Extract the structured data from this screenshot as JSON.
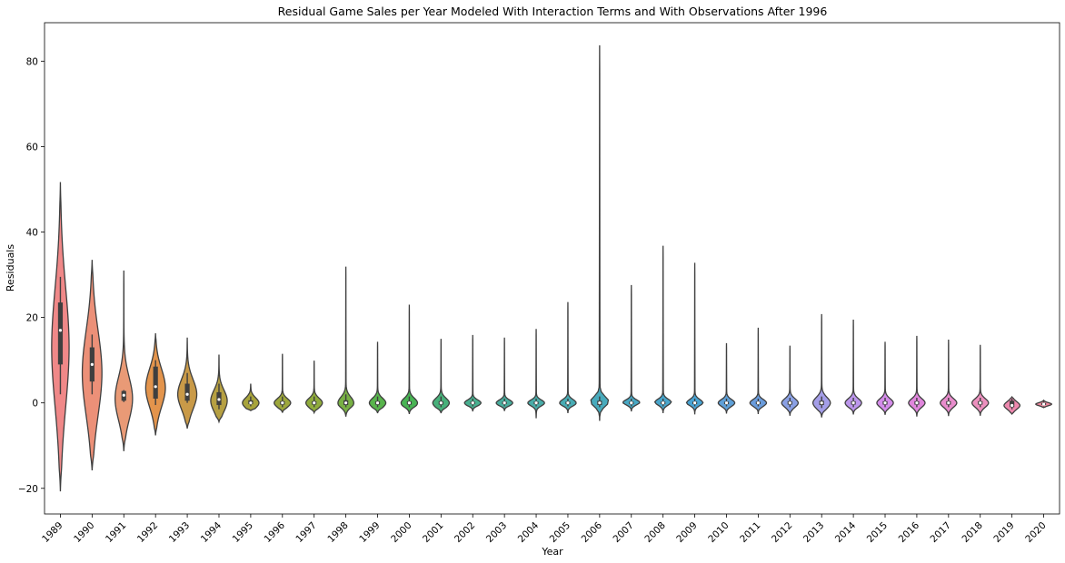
{
  "chart_data": {
    "type": "violin",
    "title": "Residual Game Sales per Year Modeled With Interaction Terms and With Observations After 1996",
    "xlabel": "Year",
    "ylabel": "Residuals",
    "ylim": [
      -26,
      89
    ],
    "yticks": [
      -20,
      0,
      20,
      40,
      60,
      80
    ],
    "ytick_labels": [
      "−20",
      "0",
      "20",
      "40",
      "60",
      "80"
    ],
    "grid": false,
    "legend": "none",
    "series": [
      {
        "category": "1989",
        "color": "#f08888",
        "min": -20.7,
        "max": 51.7,
        "q1": 9.0,
        "q3": 23.5,
        "median": 17.0,
        "wlow": 2.0,
        "whigh": 29.5,
        "center": 13.0,
        "spread": 14.0,
        "width": 0.55
      },
      {
        "category": "1990",
        "color": "#ec9078",
        "min": -15.8,
        "max": 33.5,
        "q1": 5.0,
        "q3": 13.0,
        "median": 9.0,
        "wlow": 2.0,
        "whigh": 16.0,
        "center": 7.0,
        "spread": 10.0,
        "width": 0.62
      },
      {
        "category": "1991",
        "color": "#e99a76",
        "min": -11.3,
        "max": 31.0,
        "q1": 0.5,
        "q3": 2.8,
        "median": 1.8,
        "wlow": 0.2,
        "whigh": 3.0,
        "center": 1.0,
        "spread": 5.0,
        "width": 0.55
      },
      {
        "category": "1992",
        "color": "#e3944c",
        "min": -7.6,
        "max": 16.3,
        "q1": 1.0,
        "q3": 8.5,
        "median": 3.8,
        "wlow": -0.5,
        "whigh": 10.0,
        "center": 3.5,
        "spread": 4.5,
        "width": 0.62
      },
      {
        "category": "1993",
        "color": "#c99a48",
        "min": -6.0,
        "max": 15.3,
        "q1": 0.5,
        "q3": 4.5,
        "median": 2.0,
        "wlow": 0.0,
        "whigh": 7.0,
        "center": 2.0,
        "spread": 3.5,
        "width": 0.6
      },
      {
        "category": "1994",
        "color": "#b6a042",
        "min": -4.4,
        "max": 11.3,
        "q1": -0.5,
        "q3": 2.5,
        "median": 0.8,
        "wlow": -1.5,
        "whigh": 4.5,
        "center": 0.5,
        "spread": 2.5,
        "width": 0.52
      },
      {
        "category": "1995",
        "color": "#a8a43c",
        "min": -1.8,
        "max": 4.5,
        "q1": -0.3,
        "q3": 0.6,
        "median": 0.0,
        "wlow": -0.8,
        "whigh": 1.5,
        "center": 0.0,
        "spread": 1.2,
        "width": 0.52
      },
      {
        "category": "1996",
        "color": "#9ea83c",
        "min": -2.3,
        "max": 11.5,
        "q1": -0.4,
        "q3": 0.4,
        "median": 0.0,
        "wlow": -1.0,
        "whigh": 1.5,
        "center": 0.0,
        "spread": 1.0,
        "width": 0.52
      },
      {
        "category": "1997",
        "color": "#90ac3c",
        "min": -2.3,
        "max": 9.9,
        "q1": -0.4,
        "q3": 0.4,
        "median": 0.0,
        "wlow": -1.0,
        "whigh": 1.5,
        "center": 0.0,
        "spread": 1.1,
        "width": 0.52
      },
      {
        "category": "1998",
        "color": "#78b044",
        "min": -3.2,
        "max": 31.9,
        "q1": -0.5,
        "q3": 0.6,
        "median": 0.0,
        "wlow": -1.0,
        "whigh": 2.0,
        "center": 0.0,
        "spread": 1.4,
        "width": 0.5
      },
      {
        "category": "1999",
        "color": "#58b44c",
        "min": -2.4,
        "max": 14.3,
        "q1": -0.4,
        "q3": 0.4,
        "median": 0.0,
        "wlow": -1.0,
        "whigh": 1.5,
        "center": 0.0,
        "spread": 1.1,
        "width": 0.52
      },
      {
        "category": "2000",
        "color": "#48b454",
        "min": -2.6,
        "max": 23.0,
        "q1": -0.4,
        "q3": 0.4,
        "median": 0.0,
        "wlow": -1.0,
        "whigh": 1.5,
        "center": 0.0,
        "spread": 1.1,
        "width": 0.52
      },
      {
        "category": "2001",
        "color": "#48b07a",
        "min": -2.4,
        "max": 15.0,
        "q1": -0.4,
        "q3": 0.4,
        "median": 0.0,
        "wlow": -1.0,
        "whigh": 1.5,
        "center": 0.0,
        "spread": 1.1,
        "width": 0.52
      },
      {
        "category": "2002",
        "color": "#48b090",
        "min": -2.0,
        "max": 15.9,
        "q1": -0.3,
        "q3": 0.3,
        "median": 0.0,
        "wlow": -0.8,
        "whigh": 1.0,
        "center": 0.0,
        "spread": 0.7,
        "width": 0.52
      },
      {
        "category": "2003",
        "color": "#48ae9e",
        "min": -1.9,
        "max": 15.3,
        "q1": -0.3,
        "q3": 0.3,
        "median": 0.0,
        "wlow": -0.8,
        "whigh": 1.0,
        "center": 0.0,
        "spread": 0.7,
        "width": 0.52
      },
      {
        "category": "2004",
        "color": "#48aca8",
        "min": -3.6,
        "max": 17.3,
        "q1": -0.3,
        "q3": 0.3,
        "median": 0.0,
        "wlow": -0.8,
        "whigh": 1.0,
        "center": 0.0,
        "spread": 0.7,
        "width": 0.52
      },
      {
        "category": "2005",
        "color": "#48acb4",
        "min": -2.4,
        "max": 23.6,
        "q1": -0.3,
        "q3": 0.3,
        "median": 0.0,
        "wlow": -0.8,
        "whigh": 1.0,
        "center": 0.0,
        "spread": 0.8,
        "width": 0.52
      },
      {
        "category": "2006",
        "color": "#48aabc",
        "min": -4.2,
        "max": 83.7,
        "q1": -0.5,
        "q3": 0.5,
        "median": 0.0,
        "wlow": -1.0,
        "whigh": 1.5,
        "center": 0.0,
        "spread": 1.2,
        "width": 0.55
      },
      {
        "category": "2007",
        "color": "#48a8c4",
        "min": -2.0,
        "max": 27.6,
        "q1": -0.3,
        "q3": 0.3,
        "median": 0.0,
        "wlow": -0.8,
        "whigh": 1.0,
        "center": 0.0,
        "spread": 0.7,
        "width": 0.52
      },
      {
        "category": "2008",
        "color": "#48a6cc",
        "min": -2.4,
        "max": 36.8,
        "q1": -0.3,
        "q3": 0.3,
        "median": 0.0,
        "wlow": -0.8,
        "whigh": 1.0,
        "center": 0.0,
        "spread": 0.8,
        "width": 0.52
      },
      {
        "category": "2009",
        "color": "#48a4d4",
        "min": -2.7,
        "max": 32.8,
        "q1": -0.3,
        "q3": 0.3,
        "median": 0.0,
        "wlow": -0.8,
        "whigh": 1.0,
        "center": 0.0,
        "spread": 0.8,
        "width": 0.52
      },
      {
        "category": "2010",
        "color": "#5ea0d8",
        "min": -2.5,
        "max": 14.0,
        "q1": -0.3,
        "q3": 0.3,
        "median": 0.0,
        "wlow": -0.8,
        "whigh": 1.0,
        "center": 0.0,
        "spread": 0.8,
        "width": 0.52
      },
      {
        "category": "2011",
        "color": "#6a9cdc",
        "min": -2.6,
        "max": 17.6,
        "q1": -0.3,
        "q3": 0.3,
        "median": 0.0,
        "wlow": -0.8,
        "whigh": 1.0,
        "center": 0.0,
        "spread": 0.8,
        "width": 0.52
      },
      {
        "category": "2012",
        "color": "#8aa0e4",
        "min": -3.0,
        "max": 13.4,
        "q1": -0.4,
        "q3": 0.4,
        "median": 0.0,
        "wlow": -1.0,
        "whigh": 1.2,
        "center": 0.0,
        "spread": 1.0,
        "width": 0.52
      },
      {
        "category": "2013",
        "color": "#a49ee8",
        "min": -3.4,
        "max": 20.8,
        "q1": -0.5,
        "q3": 0.5,
        "median": 0.0,
        "wlow": -1.2,
        "whigh": 1.5,
        "center": 0.0,
        "spread": 1.3,
        "width": 0.55
      },
      {
        "category": "2014",
        "color": "#bc96ec",
        "min": -2.7,
        "max": 19.5,
        "q1": -0.4,
        "q3": 0.4,
        "median": 0.0,
        "wlow": -1.0,
        "whigh": 1.2,
        "center": 0.0,
        "spread": 1.0,
        "width": 0.52
      },
      {
        "category": "2015",
        "color": "#d48cea",
        "min": -2.8,
        "max": 14.3,
        "q1": -0.4,
        "q3": 0.4,
        "median": 0.0,
        "wlow": -1.0,
        "whigh": 1.2,
        "center": 0.0,
        "spread": 1.0,
        "width": 0.52
      },
      {
        "category": "2016",
        "color": "#e086dc",
        "min": -3.2,
        "max": 15.7,
        "q1": -0.4,
        "q3": 0.4,
        "median": 0.0,
        "wlow": -1.0,
        "whigh": 1.2,
        "center": 0.0,
        "spread": 1.0,
        "width": 0.52
      },
      {
        "category": "2017",
        "color": "#e88ccc",
        "min": -3.1,
        "max": 14.8,
        "q1": -0.4,
        "q3": 0.4,
        "median": 0.0,
        "wlow": -1.0,
        "whigh": 1.2,
        "center": 0.0,
        "spread": 1.0,
        "width": 0.52
      },
      {
        "category": "2018",
        "color": "#ec90be",
        "min": -3.0,
        "max": 13.6,
        "q1": -0.4,
        "q3": 0.4,
        "median": 0.0,
        "wlow": -1.0,
        "whigh": 1.2,
        "center": 0.0,
        "spread": 1.0,
        "width": 0.52
      },
      {
        "category": "2019",
        "color": "#ee88ae",
        "min": -2.6,
        "max": 1.4,
        "q1": -1.0,
        "q3": 0.5,
        "median": -0.6,
        "wlow": -1.5,
        "whigh": 1.0,
        "center": -0.6,
        "spread": 0.9,
        "width": 0.5
      },
      {
        "category": "2020",
        "color": "#f0889e",
        "min": -1.1,
        "max": 0.6,
        "q1": -0.5,
        "q3": 0.0,
        "median": -0.3,
        "wlow": -0.8,
        "whigh": 0.4,
        "center": -0.3,
        "spread": 0.35,
        "width": 0.5
      }
    ]
  }
}
